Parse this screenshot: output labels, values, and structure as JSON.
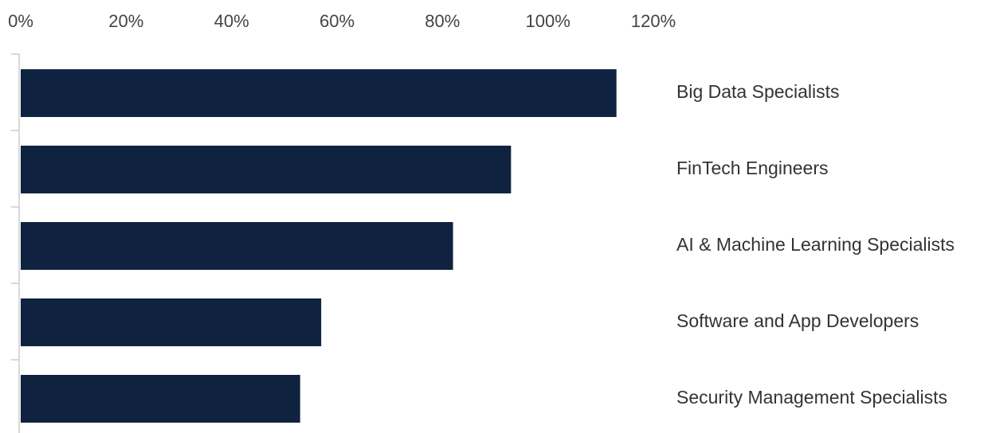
{
  "chart_data": {
    "type": "bar",
    "orientation": "horizontal",
    "categories": [
      "Big Data Specialists",
      "FinTech Engineers",
      "AI & Machine Learning Specialists",
      "Software and App Developers",
      "Security Management Specialists"
    ],
    "values": [
      113,
      93,
      82,
      57,
      53
    ],
    "color": "#0f2240",
    "xlim": [
      0,
      120
    ],
    "xticks": [
      {
        "value": 0,
        "label": "0%"
      },
      {
        "value": 20,
        "label": "20%"
      },
      {
        "value": 40,
        "label": "40%"
      },
      {
        "value": 60,
        "label": "60%"
      },
      {
        "value": 80,
        "label": "80%"
      },
      {
        "value": 100,
        "label": "100%"
      },
      {
        "value": 120,
        "label": "120%"
      }
    ],
    "grid": false
  }
}
